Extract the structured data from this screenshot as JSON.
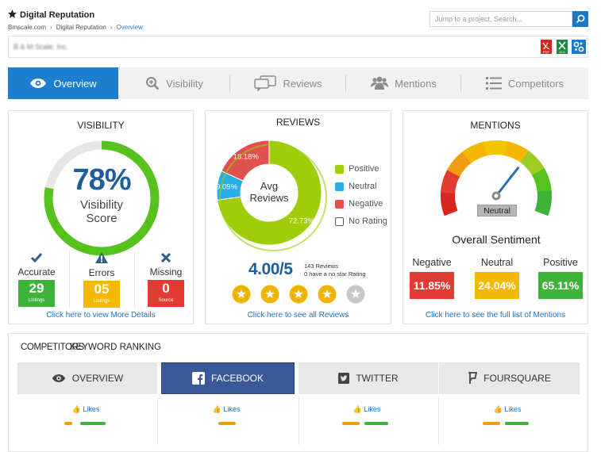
{
  "app": {
    "title": "Digital Reputation",
    "breadcrumb": [
      "Bmscale.com",
      "Digital Reputation",
      "Overview"
    ],
    "search_placeholder": "Jump to a project, Search..."
  },
  "client": {
    "name": "B & M Scale, Inc."
  },
  "exports": [
    "pdf-export-icon",
    "xls-export-icon",
    "settings-icon"
  ],
  "tabs": [
    {
      "label": "Overview",
      "icon": "eye-icon",
      "active": true
    },
    {
      "label": "Visibility",
      "icon": "zoom-in-icon"
    },
    {
      "label": "Reviews",
      "icon": "chat-bubbles-icon"
    },
    {
      "label": "Mentions",
      "icon": "users-icon"
    },
    {
      "label": "Competitors",
      "icon": "list-icon"
    }
  ],
  "visibility": {
    "title": "VISIBILITY",
    "percent": "78%",
    "score_label": [
      "Visibility",
      "Score"
    ],
    "score_fraction": 0.78,
    "stats": [
      {
        "label": "Accurate",
        "value": "29",
        "sub": "Listings",
        "color": "#3db33a",
        "icon": "check-icon"
      },
      {
        "label": "Errors",
        "value": "05",
        "sub": "Listings",
        "color": "#f5b800",
        "icon": "warning-icon"
      },
      {
        "label": "Missing",
        "value": "0",
        "sub": "Source",
        "color": "#e23b33",
        "icon": "close-icon"
      }
    ],
    "link": "Click here to view More Details"
  },
  "reviews": {
    "title": "REVIEWS",
    "center_label": [
      "Avg",
      "Reviews"
    ],
    "rating": "4.00/5",
    "count_text": "143 Reviews",
    "no_star_text": "0 have a no star Rating",
    "stars_filled": 4,
    "stars_total": 5,
    "link": "Click here to see all Reviews",
    "chart_data": {
      "type": "pie",
      "categories": [
        "Positive",
        "Neutral",
        "Negative",
        "No Rating"
      ],
      "values": [
        72.73,
        9.09,
        18.18,
        0
      ],
      "labels": [
        "72.73%",
        "9.09%",
        "18.18%",
        ""
      ],
      "colors": [
        "#9fcd0a",
        "#2aaee6",
        "#e0504d",
        "#555555"
      ]
    }
  },
  "mentions": {
    "title": "MENTIONS",
    "gauge_label": "Neutral",
    "subtitle": "Overall Sentiment",
    "stats": [
      {
        "label": "Negative",
        "value": "11.85%",
        "color": "#e23b33"
      },
      {
        "label": "Neutral",
        "value": "24.04%",
        "color": "#f5b800"
      },
      {
        "label": "Positive",
        "value": "65.11%",
        "color": "#3db33a"
      }
    ],
    "link": "Click here to see the full list of Mentions"
  },
  "bottom": {
    "title_a": "COMPETITORS",
    "title_b": "KEYWORD RANKING",
    "tabs": [
      {
        "label": "OVERVIEW",
        "icon": "eye-icon"
      },
      {
        "label": "FACEBOOK",
        "icon": "facebook-icon",
        "active": true
      },
      {
        "label": "TWITTER",
        "icon": "twitter-icon"
      },
      {
        "label": "FOURSQUARE",
        "icon": "foursquare-icon"
      }
    ],
    "likes_label": "Likes"
  }
}
